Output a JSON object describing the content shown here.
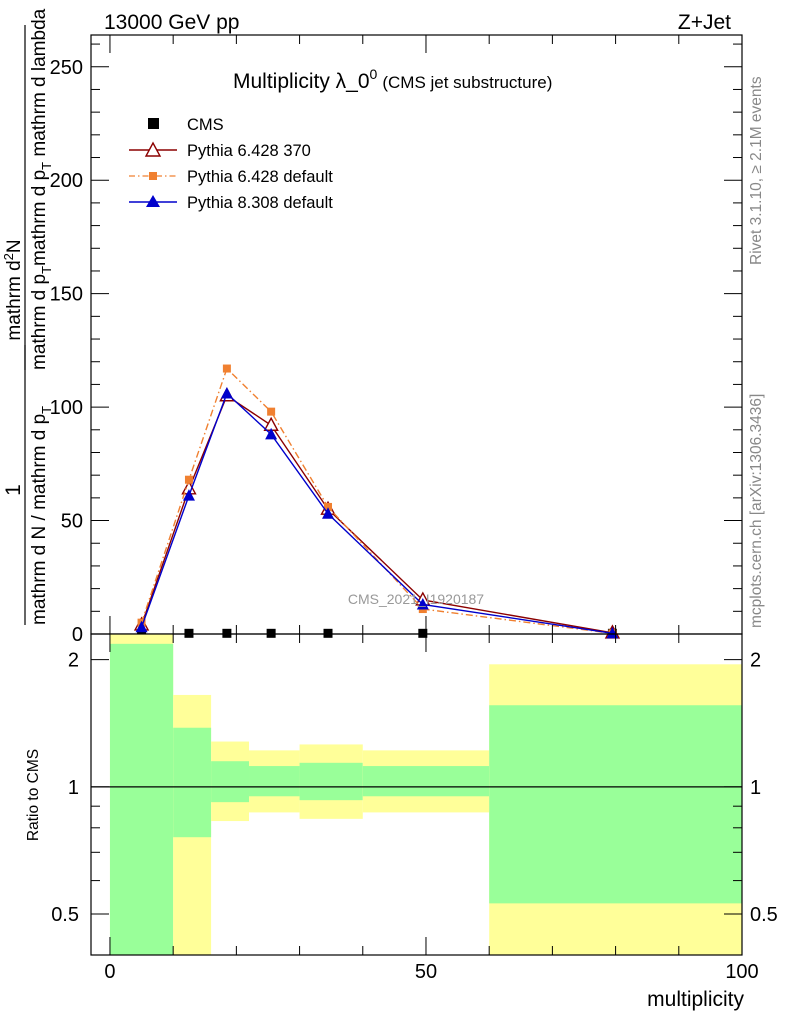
{
  "header": {
    "left": "13000 GeV pp",
    "right": "Z+Jet"
  },
  "side": {
    "rivet": "Rivet 3.1.10, ≥ 2.1M events",
    "source": "mcplots.cern.ch [arXiv:1306.3436]"
  },
  "watermark": "CMS_2021_I1920187",
  "chart_data": [
    {
      "type": "line",
      "title": "Multiplicity λ_0",
      "title_sup": "0",
      "title_suffix": "(CMS jet substructure)",
      "ylabel": "1 / mathrm d N / mathrm d p_T mathrm d p_T mathrm d lambda · mathrm d²N",
      "ylabel_parts": {
        "numerator": "1",
        "denominator": "mathrm d N / mathrm d p",
        "denominator_sub": "T",
        "frac_numerator": "mathrm d",
        "frac_numerator_sup": "2",
        "frac_numerator_tail": "N",
        "frac_denominator_a": "mathrm d p",
        "frac_denominator_sub": "T",
        "frac_denominator_b": "mathrm d p",
        "frac_denominator_sub2": "T",
        "frac_denominator_c": " mathrm d lambda"
      },
      "xlim": [
        -3,
        100
      ],
      "ylim": [
        0,
        264
      ],
      "yticks": [
        0,
        50,
        100,
        150,
        200,
        250
      ],
      "legend_position": "top-left",
      "series": [
        {
          "name": "CMS",
          "color": "#000000",
          "marker": "square",
          "x": [
            5,
            12.5,
            18.5,
            25.5,
            34.5,
            49.5,
            79.5
          ],
          "y": [
            0.3,
            0.3,
            0.3,
            0.3,
            0.3,
            0.3,
            0.3
          ]
        },
        {
          "name": "Pythia 6.428 370",
          "color": "#8b0000",
          "marker": "open-triangle",
          "line": "solid",
          "x": [
            5,
            12.5,
            18.5,
            25.5,
            34.5,
            49.5,
            79.5
          ],
          "y": [
            4,
            64,
            105,
            92,
            55,
            15,
            0.5
          ]
        },
        {
          "name": "Pythia 6.428 default",
          "color": "#f08030",
          "marker": "square",
          "line": "dashdot",
          "x": [
            5,
            12.5,
            18.5,
            25.5,
            34.5,
            49.5,
            79.5
          ],
          "y": [
            5,
            68,
            117,
            98,
            56,
            11,
            0.3
          ]
        },
        {
          "name": "Pythia 8.308 default",
          "color": "#0000cc",
          "marker": "triangle",
          "line": "solid",
          "x": [
            5,
            12.5,
            18.5,
            25.5,
            34.5,
            49.5,
            79.5
          ],
          "y": [
            3,
            61,
            106,
            88,
            53,
            13,
            0.3
          ]
        }
      ]
    },
    {
      "type": "area",
      "ylabel": "Ratio to CMS",
      "xlabel": "multiplicity",
      "xlim": [
        -3,
        100
      ],
      "ylim": [
        0.4,
        2.3
      ],
      "xticks": [
        0,
        50,
        100
      ],
      "yticks": [
        0.5,
        1,
        2
      ],
      "reference_line": 1,
      "bands": {
        "edges": [
          0,
          10,
          16,
          22,
          30,
          40,
          60,
          100
        ],
        "stat_low": [
          0.1,
          0.76,
          0.92,
          0.95,
          0.93,
          0.95,
          0.53
        ],
        "stat_high": [
          2.18,
          1.38,
          1.15,
          1.12,
          1.14,
          1.12,
          1.56
        ],
        "syst_low": [
          0.1,
          0.39,
          0.83,
          0.87,
          0.84,
          0.87,
          0.1
        ],
        "syst_high": [
          2.5,
          1.65,
          1.28,
          1.22,
          1.26,
          1.22,
          1.95
        ],
        "stat_color": "#99ff99",
        "syst_color": "#ffff99"
      }
    }
  ]
}
